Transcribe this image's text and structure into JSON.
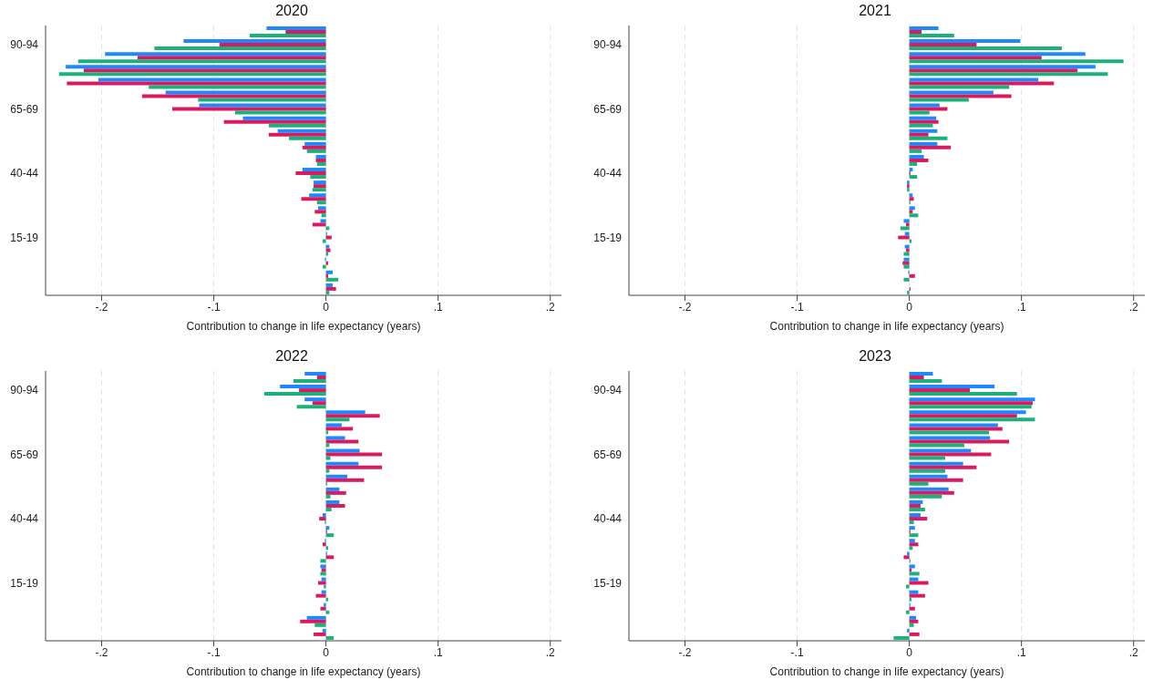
{
  "chart_data": [
    {
      "type": "bar",
      "orientation": "horizontal",
      "title": "2020",
      "xlabel": "Contribution to change in life expectancy (years)",
      "categories": [
        null,
        "90-94",
        null,
        null,
        null,
        null,
        "65-69",
        null,
        null,
        null,
        null,
        "40-44",
        null,
        null,
        null,
        null,
        "15-19",
        null,
        null,
        null,
        null
      ],
      "xlim": [
        -0.25,
        0.21
      ],
      "xticks": [
        {
          "value": -0.2,
          "label": "-.2"
        },
        {
          "value": -0.1,
          "label": "-.1"
        },
        {
          "value": 0,
          "label": "0"
        },
        {
          "value": 0.1,
          "label": ".1"
        },
        {
          "value": 0.2,
          "label": ".2"
        }
      ],
      "grid": "x",
      "series": [
        {
          "color": "#1e88ff",
          "values": [
            -0.053,
            -0.127,
            -0.197,
            -0.232,
            -0.203,
            -0.143,
            -0.113,
            -0.074,
            -0.043,
            -0.019,
            -0.009,
            -0.021,
            -0.011,
            -0.015,
            -0.007,
            -0.005,
            0.001,
            0.003,
            -0.001,
            0.006,
            0.006
          ]
        },
        {
          "color": "#d81b60",
          "values": [
            -0.036,
            -0.095,
            -0.168,
            -0.216,
            -0.231,
            -0.164,
            -0.137,
            -0.091,
            -0.051,
            -0.021,
            -0.009,
            -0.027,
            -0.011,
            -0.022,
            -0.01,
            -0.012,
            0.005,
            0.004,
            0.002,
            0.002,
            0.009
          ]
        },
        {
          "color": "#1db07a",
          "values": [
            -0.068,
            -0.153,
            -0.221,
            -0.238,
            -0.158,
            -0.114,
            -0.081,
            -0.051,
            -0.033,
            -0.017,
            -0.008,
            -0.014,
            -0.012,
            -0.008,
            -0.004,
            0.003,
            -0.003,
            0.002,
            -0.003,
            0.011,
            0.003
          ]
        }
      ]
    },
    {
      "type": "bar",
      "orientation": "horizontal",
      "title": "2021",
      "xlabel": "Contribution to change in life expectancy (years)",
      "categories": [
        null,
        "90-94",
        null,
        null,
        null,
        null,
        "65-69",
        null,
        null,
        null,
        null,
        "40-44",
        null,
        null,
        null,
        null,
        "15-19",
        null,
        null,
        null,
        null
      ],
      "xlim": [
        -0.25,
        0.21
      ],
      "xticks": [
        {
          "value": -0.2,
          "label": "-.2"
        },
        {
          "value": -0.1,
          "label": "-.1"
        },
        {
          "value": 0,
          "label": "0"
        },
        {
          "value": 0.1,
          "label": ".1"
        },
        {
          "value": 0.2,
          "label": ".2"
        }
      ],
      "grid": "x",
      "series": [
        {
          "color": "#1e88ff",
          "values": [
            0.026,
            0.099,
            0.157,
            0.166,
            0.115,
            0.075,
            0.027,
            0.024,
            0.025,
            0.025,
            0.013,
            0.003,
            -0.002,
            0.003,
            0.005,
            -0.005,
            -0.004,
            -0.004,
            -0.005,
            -0.001,
            0
          ]
        },
        {
          "color": "#d81b60",
          "values": [
            0.011,
            0.06,
            0.118,
            0.15,
            0.129,
            0.091,
            0.034,
            0.026,
            0.017,
            0.037,
            0.017,
            0.001,
            -0.002,
            0.004,
            0.003,
            -0.003,
            -0.01,
            -0.003,
            -0.006,
            0.005,
            0.001
          ]
        },
        {
          "color": "#1db07a",
          "values": [
            0.04,
            0.136,
            0.191,
            0.177,
            0.089,
            0.053,
            0.018,
            0.021,
            0.034,
            0.011,
            0.007,
            0.007,
            -0.002,
            0.001,
            0.008,
            -0.008,
            0.002,
            -0.005,
            -0.005,
            -0.005,
            -0.002
          ]
        }
      ]
    },
    {
      "type": "bar",
      "orientation": "horizontal",
      "title": "2022",
      "xlabel": "Contribution to change in life expectancy (years)",
      "categories": [
        null,
        "90-94",
        null,
        null,
        null,
        null,
        "65-69",
        null,
        null,
        null,
        null,
        "40-44",
        null,
        null,
        null,
        null,
        "15-19",
        null,
        null,
        null,
        null
      ],
      "xlim": [
        -0.25,
        0.21
      ],
      "xticks": [
        {
          "value": -0.2,
          "label": "-.2"
        },
        {
          "value": -0.1,
          "label": "-.1"
        },
        {
          "value": 0,
          "label": "0"
        },
        {
          "value": 0.1,
          "label": ".1"
        },
        {
          "value": 0.2,
          "label": ".2"
        }
      ],
      "grid": "x",
      "series": [
        {
          "color": "#1e88ff",
          "values": [
            -0.019,
            -0.041,
            -0.019,
            0.035,
            0.014,
            0.017,
            0.03,
            0.029,
            0.019,
            0.012,
            0.012,
            -0.003,
            0.003,
            -0.001,
            0.001,
            -0.005,
            -0.004,
            -0.004,
            -0.002,
            -0.017,
            -0.003
          ]
        },
        {
          "color": "#d81b60",
          "values": [
            -0.008,
            -0.024,
            -0.012,
            0.048,
            0.024,
            0.029,
            0.05,
            0.05,
            0.034,
            0.018,
            0.017,
            -0.006,
            0.001,
            -0.003,
            0.007,
            -0.004,
            -0.007,
            -0.009,
            -0.005,
            -0.023,
            -0.011
          ]
        },
        {
          "color": "#1db07a",
          "values": [
            -0.029,
            -0.055,
            -0.026,
            0.021,
            0.002,
            0.003,
            0.004,
            0.003,
            0.001,
            0.004,
            0.005,
            -0.001,
            0.007,
            0.002,
            -0.005,
            -0.005,
            -0.002,
            0.002,
            0.003,
            -0.01,
            0.007
          ]
        }
      ]
    },
    {
      "type": "bar",
      "orientation": "horizontal",
      "title": "2023",
      "xlabel": "Contribution to change in life expectancy (years)",
      "categories": [
        null,
        "90-94",
        null,
        null,
        null,
        null,
        "65-69",
        null,
        null,
        null,
        null,
        "40-44",
        null,
        null,
        null,
        null,
        "15-19",
        null,
        null,
        null,
        null
      ],
      "xlim": [
        -0.25,
        0.21
      ],
      "xticks": [
        {
          "value": -0.2,
          "label": "-.2"
        },
        {
          "value": -0.1,
          "label": "-.1"
        },
        {
          "value": 0,
          "label": "0"
        },
        {
          "value": 0.1,
          "label": ".1"
        },
        {
          "value": 0.2,
          "label": ".2"
        }
      ],
      "grid": "x",
      "series": [
        {
          "color": "#1e88ff",
          "values": [
            0.021,
            0.076,
            0.112,
            0.104,
            0.079,
            0.072,
            0.055,
            0.048,
            0.034,
            0.035,
            0.012,
            0.01,
            0.005,
            0.005,
            -0.002,
            0.005,
            0.008,
            0.008,
            0.001,
            0.006,
            -0.002
          ]
        },
        {
          "color": "#d81b60",
          "values": [
            0.013,
            0.054,
            0.11,
            0.096,
            0.083,
            0.089,
            0.073,
            0.06,
            0.048,
            0.04,
            0.01,
            0.016,
            0.001,
            0.008,
            -0.005,
            0.002,
            0.017,
            0.014,
            0.005,
            0.008,
            0.009
          ]
        },
        {
          "color": "#1db07a",
          "values": [
            0.029,
            0.096,
            0.109,
            0.112,
            0.071,
            0.049,
            0.032,
            0.032,
            0.017,
            0.029,
            0.014,
            0.004,
            0.008,
            0.003,
            0.001,
            0.009,
            -0.003,
            0.002,
            -0.003,
            0.004,
            -0.014
          ]
        }
      ]
    }
  ]
}
